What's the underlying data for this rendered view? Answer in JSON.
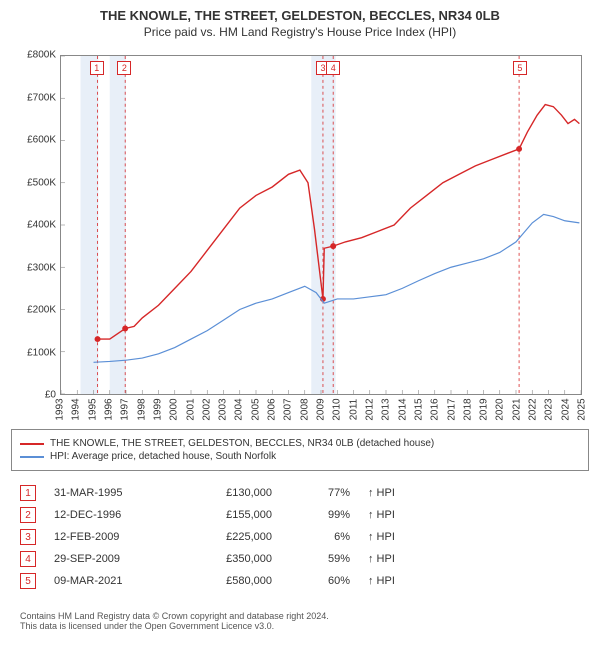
{
  "title": {
    "main": "THE KNOWLE, THE STREET, GELDESTON, BECCLES, NR34 0LB",
    "sub": "Price paid vs. HM Land Registry's House Price Index (HPI)"
  },
  "chart": {
    "type": "line",
    "x_min": 1993,
    "x_max": 2025,
    "x_step": 1,
    "y_min": 0,
    "y_max": 800000,
    "y_step": 100000,
    "y_tick_labels": [
      "£0",
      "£100K",
      "£200K",
      "£300K",
      "£400K",
      "£500K",
      "£600K",
      "£700K",
      "£800K"
    ],
    "background_color": "#ffffff",
    "grid_color": "#888888",
    "shade_color": "#e8eff8",
    "shade_ranges": [
      [
        1994.2,
        1995.3
      ],
      [
        1996.0,
        1997.0
      ],
      [
        2008.4,
        2009.9
      ]
    ],
    "series": [
      {
        "name": "price_paid",
        "label": "THE KNOWLE, THE STREET, GELDESTON, BECCLES, NR34 0LB (detached house)",
        "color": "#d62728",
        "width": 1.4,
        "points": [
          [
            1995.25,
            130000
          ],
          [
            1996.0,
            130000
          ],
          [
            1996.95,
            155000
          ],
          [
            1997.5,
            160000
          ],
          [
            1998.0,
            180000
          ],
          [
            1999.0,
            210000
          ],
          [
            2000.0,
            250000
          ],
          [
            2001.0,
            290000
          ],
          [
            2002.0,
            340000
          ],
          [
            2003.0,
            390000
          ],
          [
            2004.0,
            440000
          ],
          [
            2005.0,
            470000
          ],
          [
            2006.0,
            490000
          ],
          [
            2007.0,
            520000
          ],
          [
            2007.7,
            530000
          ],
          [
            2008.2,
            500000
          ],
          [
            2008.6,
            390000
          ],
          [
            2009.12,
            225000
          ],
          [
            2009.2,
            345000
          ],
          [
            2009.75,
            350000
          ],
          [
            2010.5,
            360000
          ],
          [
            2011.5,
            370000
          ],
          [
            2012.5,
            385000
          ],
          [
            2013.5,
            400000
          ],
          [
            2014.5,
            440000
          ],
          [
            2015.5,
            470000
          ],
          [
            2016.5,
            500000
          ],
          [
            2017.5,
            520000
          ],
          [
            2018.5,
            540000
          ],
          [
            2019.5,
            555000
          ],
          [
            2020.5,
            570000
          ],
          [
            2021.19,
            580000
          ],
          [
            2021.7,
            620000
          ],
          [
            2022.3,
            660000
          ],
          [
            2022.8,
            685000
          ],
          [
            2023.3,
            680000
          ],
          [
            2023.8,
            660000
          ],
          [
            2024.2,
            640000
          ],
          [
            2024.6,
            650000
          ],
          [
            2024.9,
            640000
          ]
        ],
        "marker_points": [
          {
            "x": 1995.25,
            "y": 130000
          },
          {
            "x": 1996.95,
            "y": 155000
          },
          {
            "x": 2009.12,
            "y": 225000
          },
          {
            "x": 2009.75,
            "y": 350000
          },
          {
            "x": 2021.19,
            "y": 580000
          }
        ]
      },
      {
        "name": "hpi",
        "label": "HPI: Average price, detached house, South Norfolk",
        "color": "#5b8fd6",
        "width": 1.2,
        "points": [
          [
            1995.0,
            75000
          ],
          [
            1996.0,
            77000
          ],
          [
            1997.0,
            80000
          ],
          [
            1998.0,
            85000
          ],
          [
            1999.0,
            95000
          ],
          [
            2000.0,
            110000
          ],
          [
            2001.0,
            130000
          ],
          [
            2002.0,
            150000
          ],
          [
            2003.0,
            175000
          ],
          [
            2004.0,
            200000
          ],
          [
            2005.0,
            215000
          ],
          [
            2006.0,
            225000
          ],
          [
            2007.0,
            240000
          ],
          [
            2008.0,
            255000
          ],
          [
            2008.7,
            240000
          ],
          [
            2009.2,
            215000
          ],
          [
            2010.0,
            225000
          ],
          [
            2011.0,
            225000
          ],
          [
            2012.0,
            230000
          ],
          [
            2013.0,
            235000
          ],
          [
            2014.0,
            250000
          ],
          [
            2015.0,
            268000
          ],
          [
            2016.0,
            285000
          ],
          [
            2017.0,
            300000
          ],
          [
            2018.0,
            310000
          ],
          [
            2019.0,
            320000
          ],
          [
            2020.0,
            335000
          ],
          [
            2021.0,
            360000
          ],
          [
            2022.0,
            405000
          ],
          [
            2022.7,
            425000
          ],
          [
            2023.3,
            420000
          ],
          [
            2024.0,
            410000
          ],
          [
            2024.9,
            405000
          ]
        ]
      }
    ],
    "event_lines": [
      {
        "n": "1",
        "x": 1995.25,
        "color": "#d62728"
      },
      {
        "n": "2",
        "x": 1996.95,
        "color": "#d62728"
      },
      {
        "n": "3",
        "x": 2009.12,
        "color": "#d62728"
      },
      {
        "n": "4",
        "x": 2009.75,
        "color": "#d62728"
      },
      {
        "n": "5",
        "x": 2021.19,
        "color": "#d62728"
      }
    ]
  },
  "legend": {
    "series1_label": "THE KNOWLE, THE STREET, GELDESTON, BECCLES, NR34 0LB (detached house)",
    "series2_label": "HPI: Average price, detached house, South Norfolk"
  },
  "events_table": {
    "comparator": "HPI",
    "arrow": "↑",
    "rows": [
      {
        "n": "1",
        "date": "31-MAR-1995",
        "price": "£130,000",
        "pct": "77%"
      },
      {
        "n": "2",
        "date": "12-DEC-1996",
        "price": "£155,000",
        "pct": "99%"
      },
      {
        "n": "3",
        "date": "12-FEB-2009",
        "price": "£225,000",
        "pct": "6%"
      },
      {
        "n": "4",
        "date": "29-SEP-2009",
        "price": "£350,000",
        "pct": "59%"
      },
      {
        "n": "5",
        "date": "09-MAR-2021",
        "price": "£580,000",
        "pct": "60%"
      }
    ]
  },
  "footer": {
    "line1": "Contains HM Land Registry data © Crown copyright and database right 2024.",
    "line2": "This data is licensed under the Open Government Licence v3.0."
  },
  "colors": {
    "marker_red": "#d62728",
    "marker_blue": "#5b8fd6"
  }
}
